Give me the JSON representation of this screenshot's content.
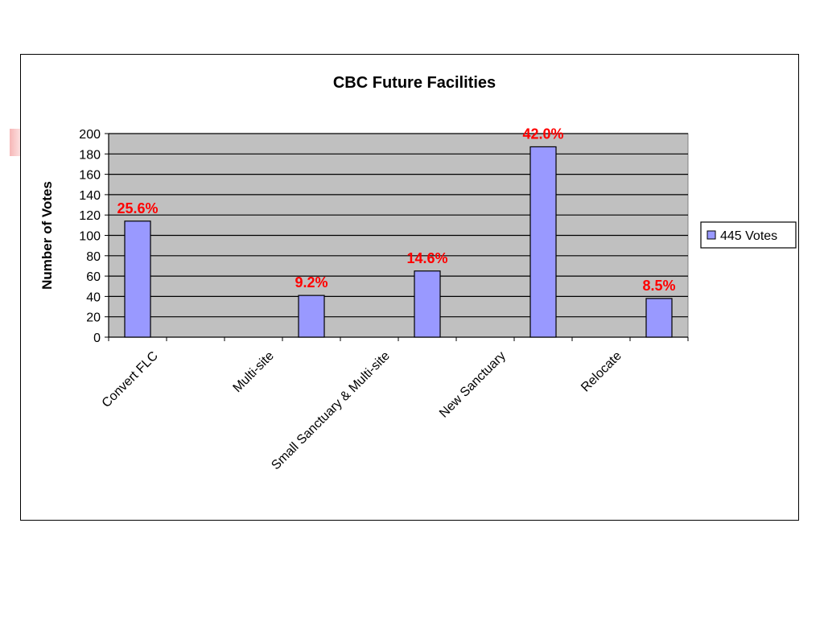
{
  "chart_data": {
    "type": "bar",
    "title": "CBC Future Facilities",
    "ylabel": "Number of Votes",
    "xlabel": "",
    "categories": [
      "Convert FLC",
      "Multi-site",
      "Small Sanctuary & Multi-site",
      "New Sanctuary",
      "Relocate"
    ],
    "series": [
      {
        "name": "445 Votes",
        "values": [
          114,
          41,
          65,
          187,
          38
        ],
        "labels": [
          "25.6%",
          "9.2%",
          "14.6%",
          "42.0%",
          "8.5%"
        ],
        "color": "#9999ff"
      }
    ],
    "ylim": [
      0,
      200
    ],
    "yticks": [
      0,
      20,
      40,
      60,
      80,
      100,
      120,
      140,
      160,
      180,
      200
    ],
    "grid": true,
    "plot_background": "#c0c0c0",
    "label_color": "#ff0000",
    "legend_position": "right"
  }
}
